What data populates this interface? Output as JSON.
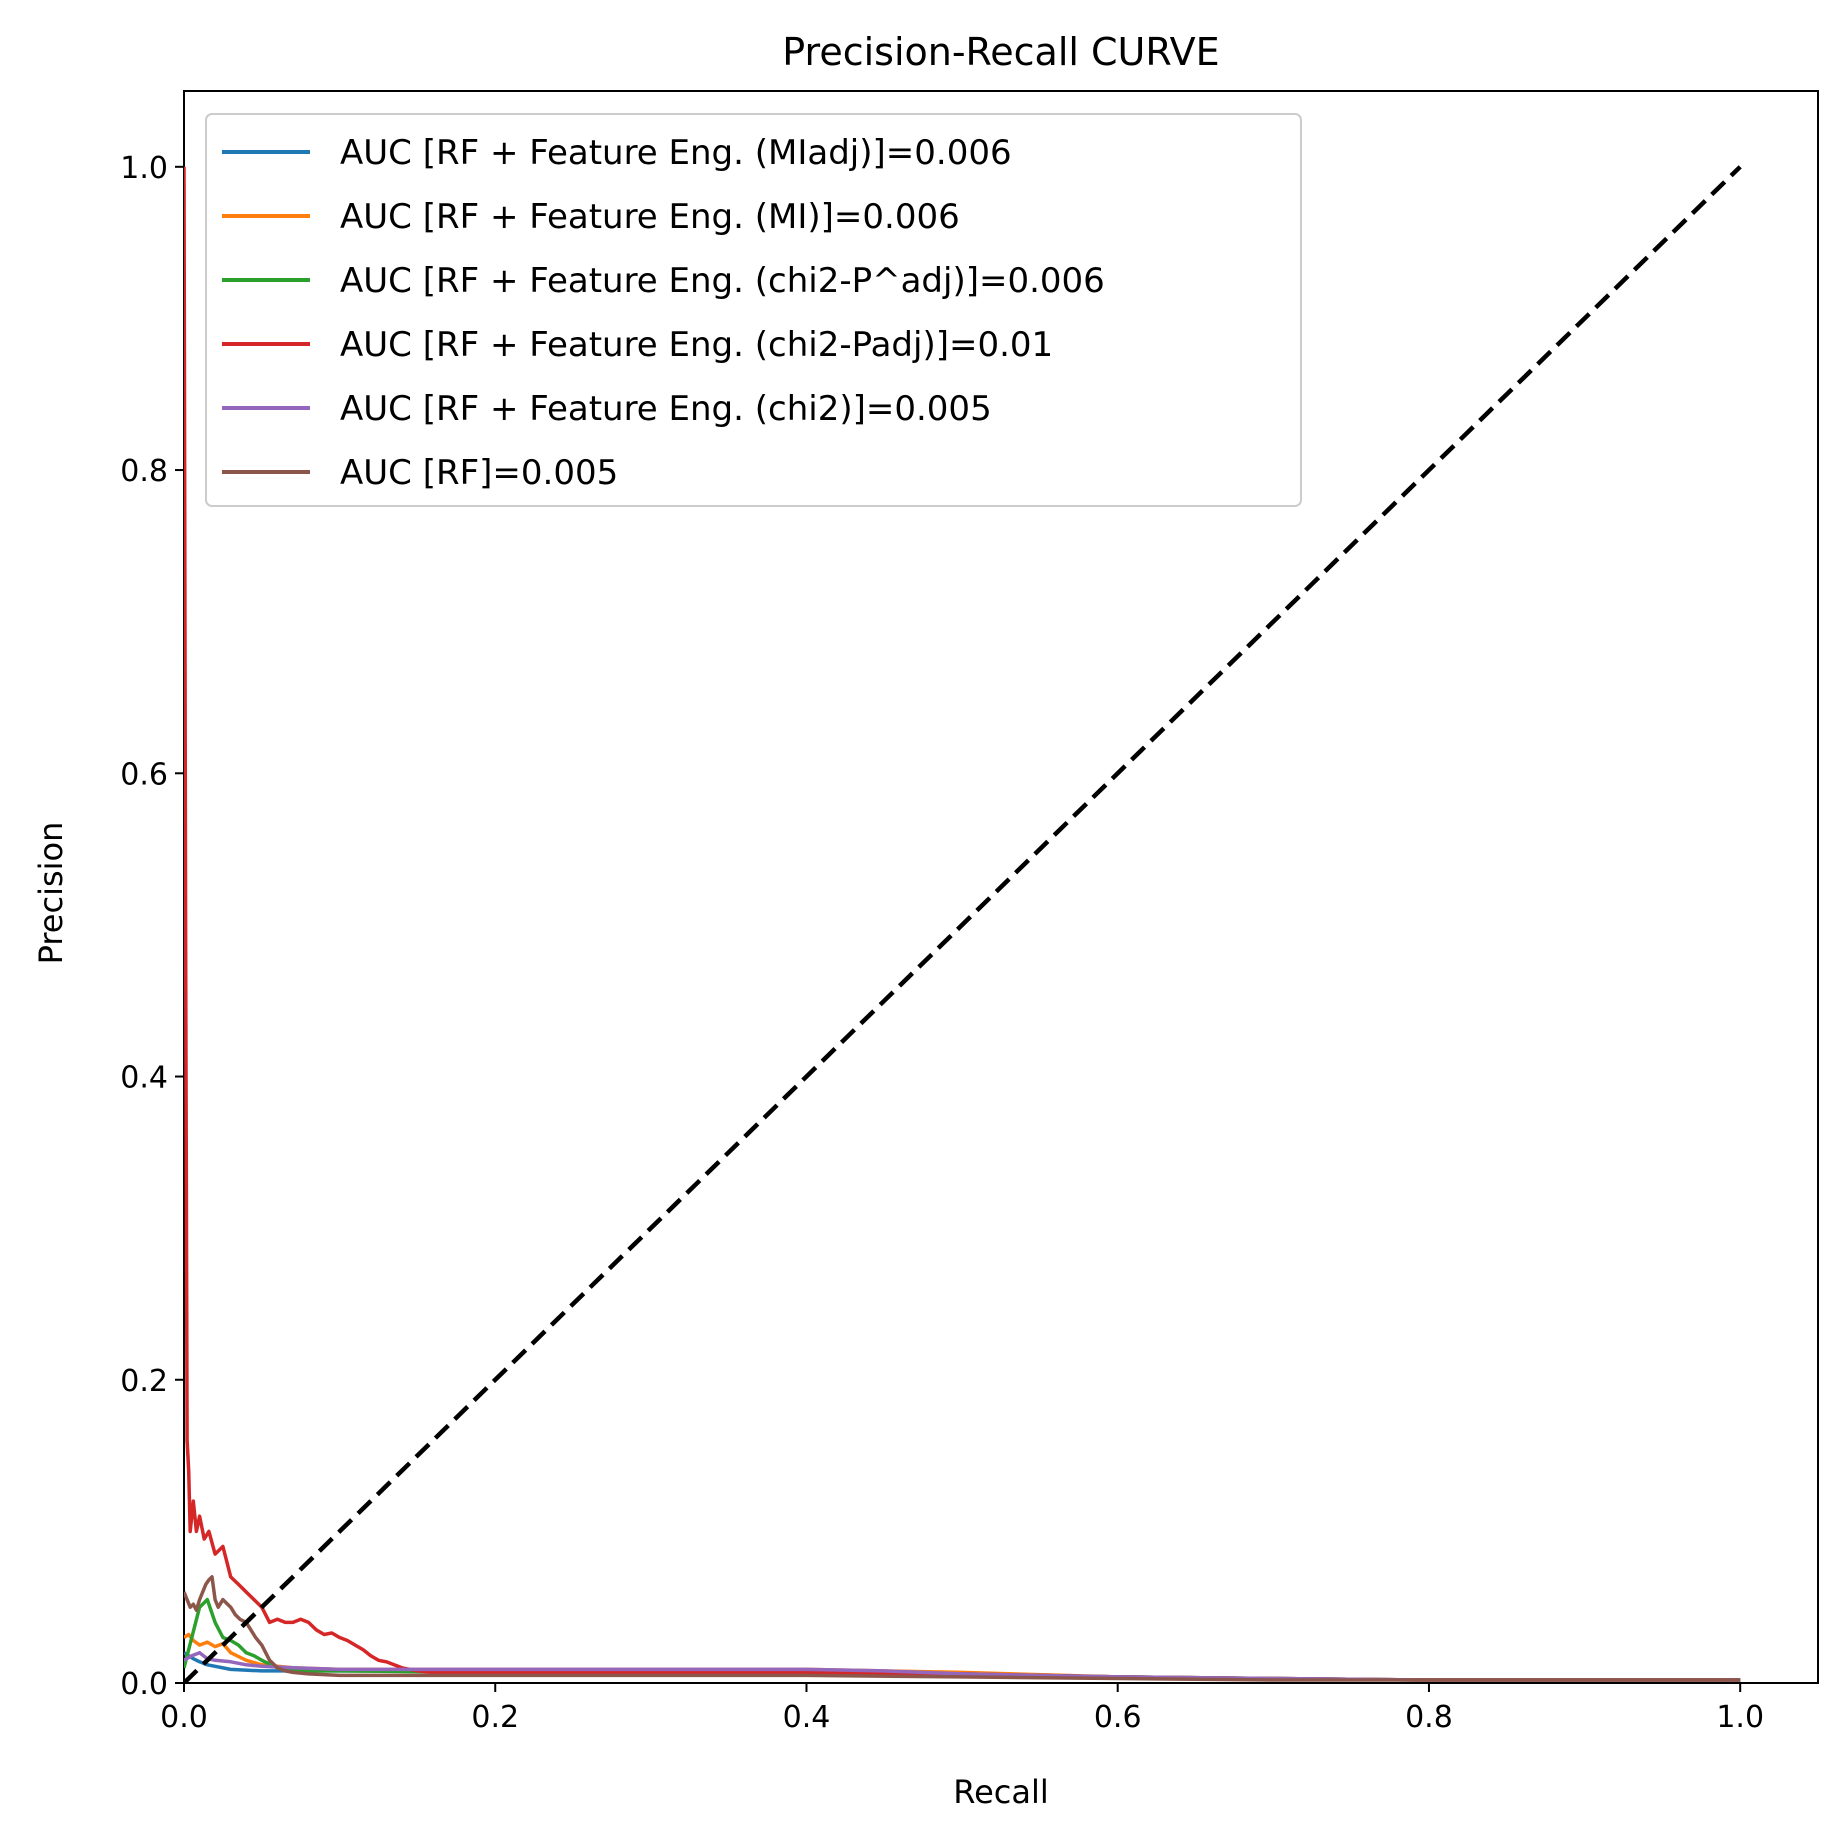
{
  "chart_data": {
    "type": "line",
    "title": "Precision-Recall CURVE",
    "xlabel": "Recall",
    "ylabel": "Precision",
    "xlim": [
      0.0,
      1.05
    ],
    "ylim": [
      0.0,
      1.05
    ],
    "xticks": [
      0.0,
      0.2,
      0.4,
      0.6,
      0.8,
      1.0
    ],
    "yticks": [
      0.0,
      0.2,
      0.4,
      0.6,
      0.8,
      1.0
    ],
    "xtick_labels": [
      "0.0",
      "0.2",
      "0.4",
      "0.6",
      "0.8",
      "1.0"
    ],
    "ytick_labels": [
      "0.0",
      "0.2",
      "0.4",
      "0.6",
      "0.8",
      "1.0"
    ],
    "legend_position": "top-left",
    "grid": false,
    "series": [
      {
        "name": "AUC [RF + Feature Eng. (MIadj)]=0.006",
        "color": "#1f77b4",
        "x": [
          0.0,
          0.003,
          0.006,
          0.01,
          0.015,
          0.02,
          0.03,
          0.05,
          0.08,
          0.1,
          0.2,
          0.3,
          0.4,
          0.45,
          0.5,
          0.6,
          0.7,
          0.8,
          0.9,
          1.0
        ],
        "y": [
          0.02,
          0.018,
          0.016,
          0.014,
          0.012,
          0.011,
          0.009,
          0.008,
          0.008,
          0.008,
          0.008,
          0.008,
          0.008,
          0.007,
          0.006,
          0.004,
          0.003,
          0.002,
          0.002,
          0.002
        ]
      },
      {
        "name": "AUC [RF + Feature Eng. (MI)]=0.006",
        "color": "#ff7f0e",
        "x": [
          0.0,
          0.003,
          0.006,
          0.01,
          0.015,
          0.02,
          0.025,
          0.03,
          0.04,
          0.05,
          0.07,
          0.1,
          0.2,
          0.3,
          0.4,
          0.45,
          0.5,
          0.6,
          0.7,
          0.8,
          0.9,
          1.0
        ],
        "y": [
          0.03,
          0.032,
          0.028,
          0.025,
          0.027,
          0.024,
          0.026,
          0.02,
          0.015,
          0.012,
          0.01,
          0.009,
          0.009,
          0.009,
          0.009,
          0.008,
          0.007,
          0.004,
          0.003,
          0.002,
          0.002,
          0.002
        ]
      },
      {
        "name": "AUC [RF + Feature Eng. (chi2-P^adj)]=0.006",
        "color": "#2ca02c",
        "x": [
          0.0,
          0.005,
          0.01,
          0.015,
          0.02,
          0.025,
          0.03,
          0.035,
          0.04,
          0.045,
          0.05,
          0.06,
          0.08,
          0.1,
          0.2,
          0.3,
          0.4,
          0.5,
          0.6,
          0.7,
          0.8,
          0.9,
          1.0
        ],
        "y": [
          0.01,
          0.03,
          0.05,
          0.055,
          0.04,
          0.03,
          0.028,
          0.025,
          0.02,
          0.018,
          0.015,
          0.01,
          0.008,
          0.008,
          0.007,
          0.007,
          0.007,
          0.006,
          0.004,
          0.003,
          0.002,
          0.002,
          0.002
        ]
      },
      {
        "name": "AUC [RF + Feature Eng. (chi2-Padj)]=0.01",
        "color": "#d62728",
        "x": [
          0.0,
          0.001,
          0.002,
          0.003,
          0.004,
          0.006,
          0.008,
          0.01,
          0.013,
          0.016,
          0.02,
          0.025,
          0.03,
          0.035,
          0.04,
          0.045,
          0.05,
          0.055,
          0.06,
          0.065,
          0.07,
          0.075,
          0.08,
          0.085,
          0.09,
          0.095,
          0.1,
          0.105,
          0.11,
          0.115,
          0.12,
          0.125,
          0.13,
          0.135,
          0.14,
          0.15,
          0.16,
          0.2,
          0.3,
          0.4,
          0.5,
          0.6,
          0.7,
          0.8,
          0.9,
          1.0
        ],
        "y": [
          1.0,
          0.5,
          0.16,
          0.14,
          0.1,
          0.12,
          0.1,
          0.11,
          0.095,
          0.1,
          0.085,
          0.09,
          0.07,
          0.065,
          0.06,
          0.055,
          0.05,
          0.04,
          0.042,
          0.04,
          0.04,
          0.042,
          0.04,
          0.035,
          0.032,
          0.033,
          0.03,
          0.028,
          0.025,
          0.022,
          0.018,
          0.015,
          0.014,
          0.012,
          0.01,
          0.008,
          0.007,
          0.007,
          0.007,
          0.007,
          0.006,
          0.004,
          0.003,
          0.002,
          0.002,
          0.002
        ]
      },
      {
        "name": "AUC [RF + Feature Eng. (chi2)]=0.005",
        "color": "#9467bd",
        "x": [
          0.0,
          0.005,
          0.01,
          0.015,
          0.02,
          0.03,
          0.04,
          0.05,
          0.07,
          0.1,
          0.2,
          0.3,
          0.4,
          0.45,
          0.5,
          0.6,
          0.7,
          0.8,
          0.9,
          1.0
        ],
        "y": [
          0.015,
          0.018,
          0.02,
          0.016,
          0.015,
          0.014,
          0.012,
          0.011,
          0.01,
          0.009,
          0.009,
          0.009,
          0.009,
          0.008,
          0.006,
          0.004,
          0.003,
          0.002,
          0.002,
          0.002
        ]
      },
      {
        "name": "AUC [RF]=0.005",
        "color": "#8c564b",
        "x": [
          0.0,
          0.002,
          0.004,
          0.006,
          0.008,
          0.01,
          0.012,
          0.014,
          0.016,
          0.018,
          0.02,
          0.022,
          0.025,
          0.028,
          0.03,
          0.033,
          0.036,
          0.04,
          0.043,
          0.046,
          0.05,
          0.055,
          0.06,
          0.065,
          0.07,
          0.08,
          0.1,
          0.2,
          0.3,
          0.4,
          0.5,
          0.6,
          0.7,
          0.8,
          0.9,
          1.0
        ],
        "y": [
          0.06,
          0.055,
          0.05,
          0.052,
          0.048,
          0.055,
          0.06,
          0.065,
          0.068,
          0.07,
          0.055,
          0.05,
          0.055,
          0.052,
          0.05,
          0.045,
          0.042,
          0.04,
          0.035,
          0.03,
          0.025,
          0.015,
          0.01,
          0.008,
          0.007,
          0.006,
          0.005,
          0.005,
          0.005,
          0.005,
          0.004,
          0.003,
          0.002,
          0.002,
          0.002,
          0.002
        ]
      }
    ],
    "reference_line": {
      "x": [
        0.0,
        1.0
      ],
      "y": [
        0.0,
        1.0
      ],
      "color": "#000000",
      "style": "dashed"
    }
  }
}
